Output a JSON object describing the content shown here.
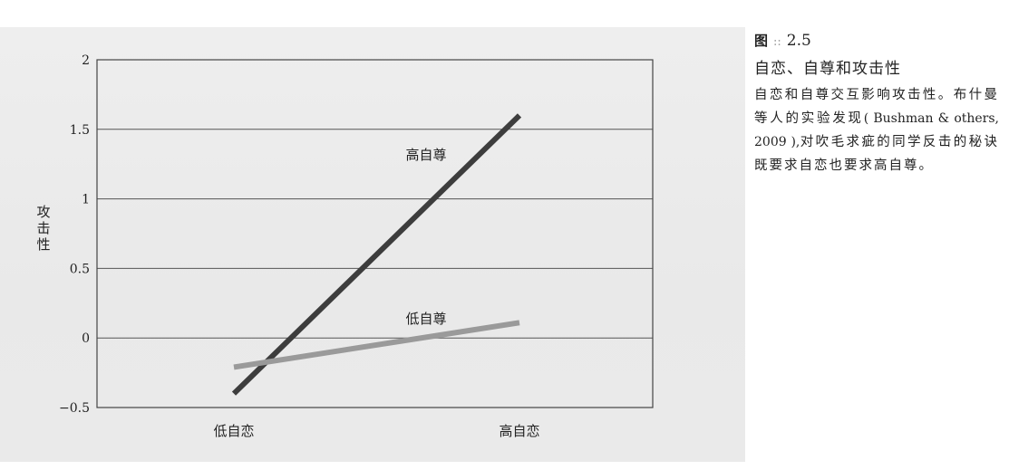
{
  "caption": {
    "figure_mark": "图",
    "figure_number": "2.5",
    "title": "自恋、自尊和攻击性",
    "description_part1": "自恋和自尊交互影响攻击性。布什曼等人的实验发现",
    "citation": "( Bushman & others, 2009 ),",
    "description_part2": "对吹毛求疵的同学反击的秘诀既要求自恋也要求高自尊。"
  },
  "chart_data": {
    "type": "line",
    "title": "",
    "xlabel": "",
    "ylabel": "攻击性",
    "categories": [
      "低自恋",
      "高自恋"
    ],
    "ylim": [
      -0.5,
      2
    ],
    "yticks": [
      -0.5,
      0,
      0.5,
      1,
      1.5,
      2
    ],
    "ytick_labels": [
      "−0.5",
      "0",
      "0.5",
      "1",
      "1.5",
      "2"
    ],
    "grid": true,
    "series": [
      {
        "name": "高自尊",
        "values": [
          -0.4,
          1.6
        ],
        "color": "#3d3d3d"
      },
      {
        "name": "低自尊",
        "values": [
          -0.21,
          0.11
        ],
        "color": "#9a9a9a"
      }
    ]
  }
}
